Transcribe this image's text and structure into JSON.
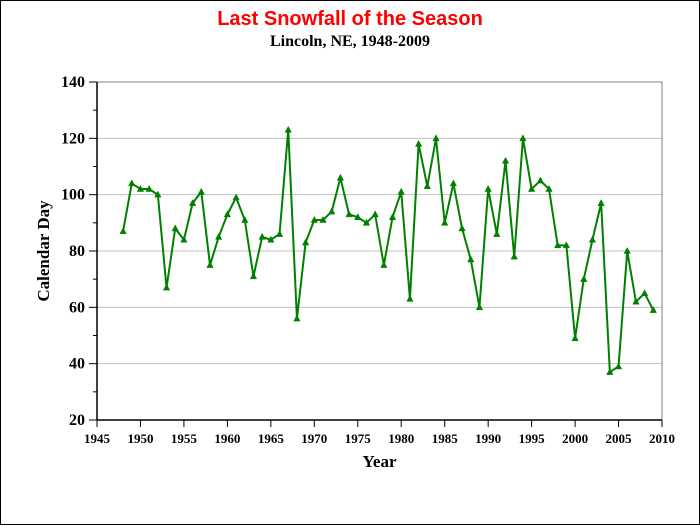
{
  "chart_data": {
    "type": "line",
    "title": "Last Snowfall of the Season",
    "subtitle": "Lincoln, NE, 1948-2009",
    "xlabel": "Year",
    "ylabel": "Calendar Day",
    "xlim": [
      1945,
      2010
    ],
    "ylim": [
      20,
      140
    ],
    "x_ticks": [
      1945,
      1950,
      1955,
      1960,
      1965,
      1970,
      1975,
      1980,
      1985,
      1990,
      1995,
      2000,
      2005,
      2010
    ],
    "y_ticks": [
      20,
      40,
      60,
      80,
      100,
      120,
      140
    ],
    "grid": "horizontal",
    "colors": {
      "series": "#008000",
      "title": "#ff0000",
      "grid": "#c0c0c0"
    },
    "series": [
      {
        "marker": "triangle",
        "x": [
          1948,
          1949,
          1950,
          1951,
          1952,
          1953,
          1954,
          1955,
          1956,
          1957,
          1958,
          1959,
          1960,
          1961,
          1962,
          1963,
          1964,
          1965,
          1966,
          1967,
          1968,
          1969,
          1970,
          1971,
          1972,
          1973,
          1974,
          1975,
          1976,
          1977,
          1978,
          1979,
          1980,
          1981,
          1982,
          1983,
          1984,
          1985,
          1986,
          1987,
          1988,
          1989,
          1990,
          1991,
          1992,
          1993,
          1994,
          1995,
          1996,
          1997,
          1998,
          1999,
          2000,
          2001,
          2002,
          2003,
          2004,
          2005,
          2006,
          2007,
          2008,
          2009
        ],
        "values": [
          87,
          104,
          102,
          102,
          100,
          67,
          88,
          84,
          97,
          101,
          75,
          85,
          93,
          99,
          91,
          71,
          85,
          84,
          86,
          123,
          56,
          83,
          91,
          91,
          94,
          106,
          93,
          92,
          90,
          93,
          75,
          92,
          101,
          63,
          118,
          103,
          120,
          90,
          104,
          88,
          77,
          60,
          102,
          86,
          112,
          78,
          120,
          102,
          105,
          102,
          82,
          82,
          49,
          70,
          84,
          97,
          37,
          39,
          80,
          62,
          65,
          59
        ]
      }
    ]
  }
}
